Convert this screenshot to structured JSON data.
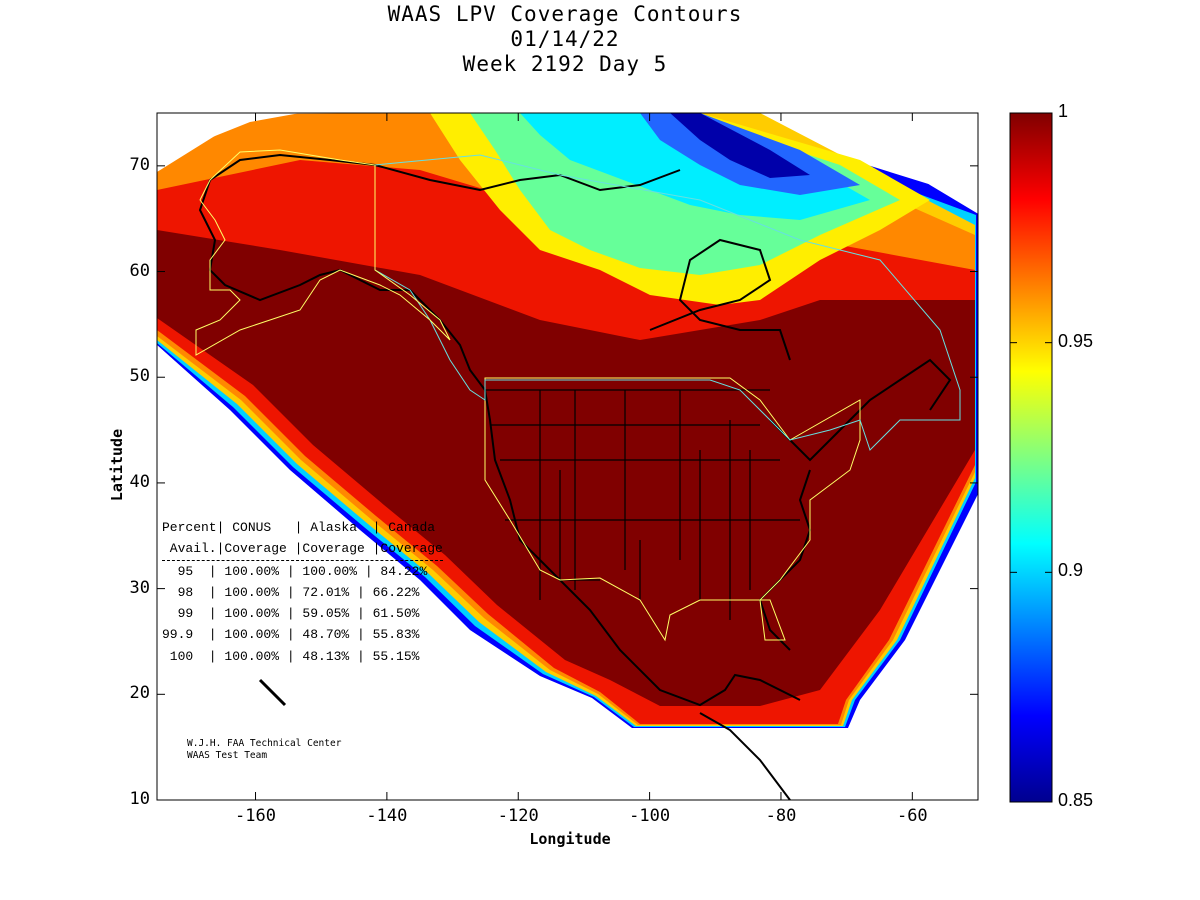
{
  "title_lines": [
    "WAAS LPV Coverage Contours",
    "01/14/22",
    "Week 2192 Day 5"
  ],
  "map": {
    "projection": "equirectangular",
    "lon_range": [
      -175,
      -50
    ],
    "lat_range": [
      10,
      75
    ],
    "xlabel": "Longitude",
    "ylabel": "Latitude",
    "x_ticks": [
      "-160",
      "-140",
      "-120",
      "-100",
      "-80",
      "-60"
    ],
    "x_tick_values": [
      -160,
      -140,
      -120,
      -100,
      -80,
      -60
    ],
    "y_ticks": [
      "70",
      "60",
      "50",
      "40",
      "30",
      "20",
      "10"
    ],
    "y_tick_values": [
      70,
      60,
      50,
      40,
      30,
      20,
      10
    ],
    "boundary_colors": {
      "conus": "#ffff66",
      "alaska": "#ffff66",
      "canada": "#66e0e0",
      "coast": "#000000"
    }
  },
  "colorbar": {
    "range": [
      0.85,
      1.0
    ],
    "ticks": [
      "1",
      "0.95",
      "0.9",
      "0.85"
    ],
    "tick_values": [
      1.0,
      0.95,
      0.9,
      0.85
    ],
    "colormap": "jet"
  },
  "stats_table": {
    "header1": "Percent| CONUS   | Alaska  | Canada",
    "header2": " Avail.|Coverage |Coverage |Coverage",
    "rows": [
      {
        "pct": "  95  ",
        "conus": "100.00%",
        "alaska": "100.00%",
        "canada": "84.22%"
      },
      {
        "pct": "  98  ",
        "conus": "100.00%",
        "alaska": "72.01%",
        "canada": "66.22%"
      },
      {
        "pct": "  99  ",
        "conus": "100.00%",
        "alaska": "59.05%",
        "canada": "61.50%"
      },
      {
        "pct": "99.9  ",
        "conus": "100.00%",
        "alaska": "48.70%",
        "canada": "55.83%"
      },
      {
        "pct": " 100  ",
        "conus": "100.00%",
        "alaska": "48.13%",
        "canada": "55.15%"
      }
    ]
  },
  "credit_lines": [
    "W.J.H. FAA Technical Center",
    "WAAS Test Team"
  ]
}
